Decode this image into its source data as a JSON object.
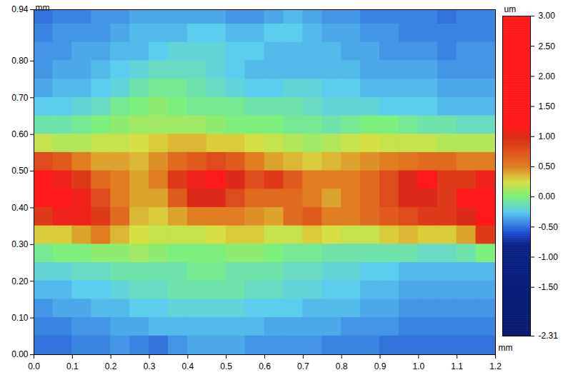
{
  "chart_data": {
    "type": "heatmap",
    "xlabel": "mm",
    "ylabel": "mm",
    "xlim": [
      0,
      1.2
    ],
    "ylim": [
      0,
      0.94
    ],
    "xticks": [
      {
        "value": 0,
        "label": "0.0"
      },
      0.1,
      0.2,
      0.3,
      0.4,
      0.5,
      0.6,
      0.7,
      0.8,
      0.9,
      {
        "value": 1,
        "label": "1.0"
      },
      1.1,
      1.2
    ],
    "yticks": [
      {
        "value": 0,
        "label": "0.00"
      },
      {
        "value": 0.1,
        "label": "0.10"
      },
      {
        "value": 0.2,
        "label": "0.20"
      },
      {
        "value": 0.3,
        "label": "0.30"
      },
      {
        "value": 0.4,
        "label": "0.40"
      },
      {
        "value": 0.5,
        "label": "0.50"
      },
      {
        "value": 0.6,
        "label": "0.60"
      },
      {
        "value": 0.7,
        "label": "0.70"
      },
      {
        "value": 0.8,
        "label": "0.80"
      },
      0.94
    ],
    "x": [
      0.025,
      0.075,
      0.125,
      0.175,
      0.225,
      0.275,
      0.325,
      0.375,
      0.425,
      0.475,
      0.525,
      0.575,
      0.625,
      0.675,
      0.725,
      0.775,
      0.825,
      0.875,
      0.925,
      0.975,
      1.025,
      1.075,
      1.125,
      1.175
    ],
    "y": [
      0.925,
      0.875,
      0.825,
      0.775,
      0.725,
      0.675,
      0.625,
      0.575,
      0.525,
      0.475,
      0.425,
      0.375,
      0.325,
      0.275,
      0.225,
      0.175,
      0.125,
      0.075,
      0.025
    ],
    "cells": [
      [
        -0.5,
        -0.45,
        -0.45,
        -0.4,
        -0.4,
        -0.35,
        -0.35,
        -0.35,
        -0.35,
        -0.35,
        -0.4,
        -0.4,
        -0.35,
        -0.3,
        -0.35,
        -0.4,
        -0.4,
        -0.45,
        -0.45,
        -0.45,
        -0.45,
        -0.5,
        -0.45,
        -0.45
      ],
      [
        -0.45,
        -0.4,
        -0.4,
        -0.4,
        -0.35,
        -0.3,
        -0.3,
        -0.3,
        -0.25,
        -0.25,
        -0.3,
        -0.3,
        -0.25,
        -0.25,
        -0.3,
        -0.35,
        -0.35,
        -0.4,
        -0.4,
        -0.45,
        -0.45,
        -0.45,
        -0.45,
        -0.45
      ],
      [
        -0.4,
        -0.4,
        -0.35,
        -0.35,
        -0.3,
        -0.3,
        -0.25,
        -0.2,
        -0.2,
        -0.2,
        -0.25,
        -0.25,
        -0.3,
        -0.3,
        -0.3,
        -0.3,
        -0.35,
        -0.35,
        -0.4,
        -0.4,
        -0.4,
        -0.45,
        -0.4,
        -0.4
      ],
      [
        -0.4,
        -0.35,
        -0.35,
        -0.3,
        -0.25,
        -0.2,
        -0.15,
        -0.15,
        -0.15,
        -0.2,
        -0.25,
        -0.3,
        -0.3,
        -0.3,
        -0.3,
        -0.3,
        -0.3,
        -0.35,
        -0.35,
        -0.35,
        -0.35,
        -0.4,
        -0.4,
        -0.4
      ],
      [
        -0.35,
        -0.3,
        -0.3,
        -0.25,
        -0.2,
        -0.1,
        -0.05,
        -0.05,
        -0.1,
        -0.15,
        -0.2,
        -0.25,
        -0.25,
        -0.2,
        -0.2,
        -0.25,
        -0.25,
        -0.3,
        -0.3,
        -0.3,
        -0.3,
        -0.35,
        -0.35,
        -0.35
      ],
      [
        -0.25,
        -0.25,
        -0.2,
        -0.15,
        -0.05,
        0.0,
        0.05,
        0.0,
        -0.05,
        -0.05,
        -0.05,
        -0.1,
        -0.1,
        -0.1,
        -0.15,
        -0.2,
        -0.2,
        -0.2,
        -0.25,
        -0.25,
        -0.25,
        -0.3,
        -0.3,
        -0.3
      ],
      [
        -0.1,
        -0.1,
        -0.05,
        0.0,
        0.05,
        0.1,
        0.1,
        0.1,
        0.1,
        0.05,
        0.0,
        0.0,
        0.0,
        -0.05,
        -0.05,
        -0.1,
        -0.05,
        0.0,
        0.0,
        -0.05,
        -0.1,
        -0.1,
        -0.15,
        -0.15
      ],
      [
        0.2,
        0.15,
        0.15,
        0.2,
        0.2,
        0.25,
        0.3,
        0.35,
        0.35,
        0.3,
        0.3,
        0.25,
        0.2,
        0.15,
        0.1,
        0.15,
        0.2,
        0.25,
        0.2,
        0.2,
        0.2,
        0.15,
        0.15,
        0.15
      ],
      [
        0.8,
        0.7,
        0.5,
        0.4,
        0.4,
        0.35,
        0.45,
        0.6,
        0.7,
        0.8,
        0.7,
        0.5,
        0.4,
        0.35,
        0.3,
        0.35,
        0.4,
        0.45,
        0.5,
        0.55,
        0.6,
        0.6,
        0.5,
        0.5
      ],
      [
        1.2,
        1.1,
        0.9,
        0.6,
        0.5,
        0.4,
        0.5,
        0.9,
        1.1,
        1.2,
        1.0,
        0.8,
        0.9,
        0.7,
        0.5,
        0.5,
        0.5,
        0.6,
        0.8,
        1.0,
        1.2,
        0.9,
        0.9,
        1.1
      ],
      [
        1.3,
        1.2,
        1.1,
        0.8,
        0.5,
        0.4,
        0.4,
        0.7,
        1.0,
        1.0,
        0.8,
        0.6,
        0.6,
        0.6,
        0.5,
        0.4,
        0.5,
        0.6,
        0.8,
        1.0,
        1.0,
        0.9,
        1.2,
        1.3
      ],
      [
        0.9,
        1.1,
        1.1,
        0.9,
        0.6,
        0.35,
        0.3,
        0.4,
        0.5,
        0.5,
        0.5,
        0.45,
        0.4,
        0.6,
        0.7,
        0.5,
        0.5,
        0.6,
        0.7,
        0.8,
        0.9,
        0.9,
        1.0,
        1.3
      ],
      [
        0.3,
        0.3,
        0.4,
        0.5,
        0.35,
        0.25,
        0.2,
        0.2,
        0.2,
        0.25,
        0.3,
        0.3,
        0.2,
        0.2,
        0.3,
        0.25,
        0.2,
        0.2,
        0.3,
        0.35,
        0.3,
        0.3,
        0.4,
        0.9
      ],
      [
        -0.05,
        0.0,
        0.0,
        0.05,
        0.05,
        0.1,
        0.05,
        0.0,
        0.0,
        0.0,
        0.05,
        0.05,
        0.0,
        -0.05,
        -0.05,
        -0.1,
        -0.1,
        -0.1,
        -0.1,
        -0.1,
        -0.15,
        -0.15,
        -0.1,
        0.0
      ],
      [
        -0.2,
        -0.2,
        -0.15,
        -0.15,
        -0.1,
        -0.1,
        -0.1,
        -0.1,
        -0.05,
        -0.05,
        -0.1,
        -0.1,
        -0.1,
        -0.15,
        -0.15,
        -0.2,
        -0.2,
        -0.25,
        -0.25,
        -0.3,
        -0.3,
        -0.3,
        -0.3,
        -0.3
      ],
      [
        -0.3,
        -0.3,
        -0.25,
        -0.25,
        -0.2,
        -0.15,
        -0.15,
        -0.1,
        -0.1,
        -0.1,
        -0.1,
        -0.15,
        -0.15,
        -0.2,
        -0.2,
        -0.25,
        -0.25,
        -0.3,
        -0.3,
        -0.35,
        -0.35,
        -0.35,
        -0.35,
        -0.35
      ],
      [
        -0.4,
        -0.35,
        -0.35,
        -0.3,
        -0.3,
        -0.25,
        -0.25,
        -0.2,
        -0.2,
        -0.2,
        -0.2,
        -0.25,
        -0.25,
        -0.25,
        -0.3,
        -0.3,
        -0.3,
        -0.35,
        -0.35,
        -0.4,
        -0.4,
        -0.4,
        -0.4,
        -0.4
      ],
      [
        -0.45,
        -0.45,
        -0.4,
        -0.4,
        -0.35,
        -0.35,
        -0.3,
        -0.3,
        -0.3,
        -0.3,
        -0.3,
        -0.3,
        -0.35,
        -0.35,
        -0.35,
        -0.35,
        -0.4,
        -0.4,
        -0.4,
        -0.45,
        -0.45,
        -0.45,
        -0.45,
        -0.45
      ],
      [
        -0.5,
        -0.5,
        -0.45,
        -0.45,
        -0.4,
        -0.45,
        -0.5,
        -0.4,
        -0.35,
        -0.35,
        -0.35,
        -0.4,
        -0.4,
        -0.4,
        -0.4,
        -0.45,
        -0.45,
        -0.45,
        -0.5,
        -0.5,
        -0.5,
        -0.5,
        -0.5,
        -0.5
      ]
    ],
    "colorbar": {
      "label": "um",
      "range": [
        -2.31,
        3.0
      ],
      "ticks": [
        {
          "value": 3,
          "label": "3.00"
        },
        {
          "value": 2.5,
          "label": "2.50"
        },
        {
          "value": 2,
          "label": "2.00"
        },
        {
          "value": 1.5,
          "label": "1.50"
        },
        {
          "value": 1,
          "label": "1.00"
        },
        {
          "value": 0.5,
          "label": "0.50"
        },
        {
          "value": 0,
          "label": "0.00"
        },
        {
          "value": -0.5,
          "label": "-0.50"
        },
        {
          "value": -1,
          "label": "-1.00"
        },
        {
          "value": -1.5,
          "label": "-1.50"
        },
        -2.31
      ]
    }
  }
}
